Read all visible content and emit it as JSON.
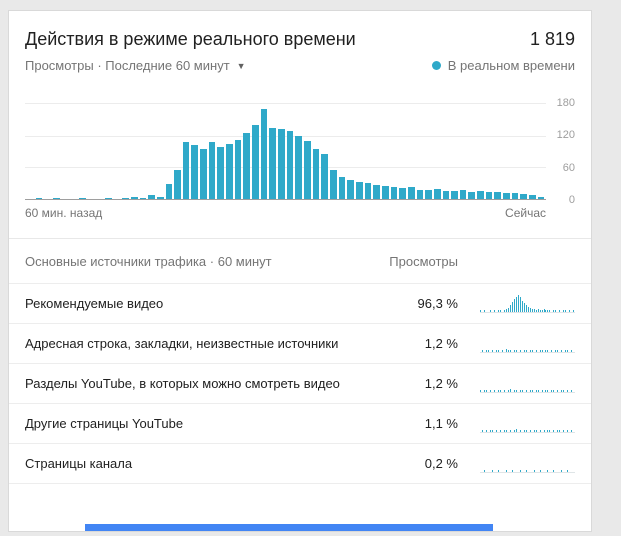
{
  "header": {
    "title": "Действия в режиме реального времени",
    "count": "1 819",
    "subtitle": "Просмотры · Последние 60 минут",
    "legend": "В реальном времени"
  },
  "colors": {
    "accent": "#2fa9c9",
    "blue_bar": "#4285f4"
  },
  "chart_data": {
    "type": "bar",
    "title": "Действия в режиме реального времени — просмотры за последние 60 минут",
    "xlabel_left": "60 мин. назад",
    "xlabel_right": "Сейчас",
    "ylim": [
      0,
      180
    ],
    "yticks": [
      180,
      120,
      60,
      0
    ],
    "grid": true,
    "values": [
      0,
      2,
      0,
      1,
      0,
      0,
      1,
      0,
      0,
      2,
      0,
      1,
      3,
      2,
      8,
      4,
      28,
      55,
      108,
      102,
      95,
      108,
      98,
      105,
      112,
      125,
      140,
      170,
      135,
      132,
      128,
      120,
      110,
      95,
      85,
      55,
      42,
      36,
      32,
      30,
      27,
      24,
      22,
      20,
      22,
      18,
      17,
      19,
      16,
      15,
      17,
      14,
      15,
      13,
      14,
      12,
      11,
      10,
      8,
      4
    ]
  },
  "traffic": {
    "header": "Основные источники трафика · 60 минут",
    "views_header": "Просмотры",
    "rows": [
      {
        "label": "Рекомендуемые видео",
        "value": "96,3 %",
        "spark": [
          1,
          0,
          1,
          0,
          0,
          1,
          0,
          1,
          0,
          1,
          1,
          0,
          1,
          2,
          3,
          5,
          8,
          10,
          12,
          14,
          12,
          9,
          7,
          5,
          4,
          3,
          2,
          2,
          1,
          2,
          1,
          1,
          2,
          1,
          1,
          1,
          0,
          1,
          1,
          0,
          1,
          0,
          1,
          1,
          0,
          1,
          0,
          1
        ]
      },
      {
        "label": "Адресная строка, закладки, неизвестные источники",
        "value": "1,2 %",
        "spark": [
          0,
          1,
          0,
          1,
          1,
          0,
          1,
          0,
          1,
          1,
          0,
          1,
          0,
          2,
          1,
          1,
          0,
          1,
          1,
          0,
          1,
          0,
          1,
          1,
          0,
          1,
          1,
          0,
          1,
          0,
          1,
          1,
          0,
          1,
          1,
          0,
          1,
          0,
          1,
          1,
          0,
          1,
          0,
          1,
          1,
          0,
          1,
          0
        ]
      },
      {
        "label": "Разделы YouTube, в которых можно смотреть видео",
        "value": "1,2 %",
        "spark": [
          1,
          0,
          1,
          1,
          0,
          1,
          0,
          1,
          0,
          1,
          1,
          0,
          1,
          0,
          1,
          2,
          0,
          1,
          1,
          0,
          1,
          1,
          0,
          1,
          0,
          1,
          1,
          0,
          1,
          1,
          0,
          1,
          0,
          1,
          1,
          0,
          1,
          1,
          0,
          1,
          0,
          1,
          1,
          0,
          1,
          0,
          1,
          0
        ]
      },
      {
        "label": "Другие страницы YouTube",
        "value": "1,1 %",
        "spark": [
          0,
          1,
          0,
          1,
          0,
          1,
          1,
          0,
          1,
          0,
          1,
          0,
          1,
          1,
          0,
          1,
          0,
          1,
          2,
          0,
          1,
          0,
          1,
          1,
          0,
          1,
          0,
          1,
          1,
          0,
          1,
          0,
          1,
          0,
          1,
          1,
          0,
          1,
          0,
          1,
          1,
          0,
          1,
          0,
          1,
          0,
          1,
          0
        ]
      },
      {
        "label": "Страницы канала",
        "value": "0,2 %",
        "spark": [
          0,
          0,
          1,
          0,
          0,
          0,
          1,
          0,
          0,
          1,
          0,
          0,
          0,
          1,
          0,
          0,
          1,
          0,
          0,
          0,
          1,
          0,
          0,
          1,
          0,
          0,
          0,
          1,
          0,
          0,
          1,
          0,
          0,
          0,
          1,
          0,
          0,
          1,
          0,
          0,
          0,
          1,
          0,
          0,
          1,
          0,
          0,
          0
        ]
      }
    ]
  }
}
